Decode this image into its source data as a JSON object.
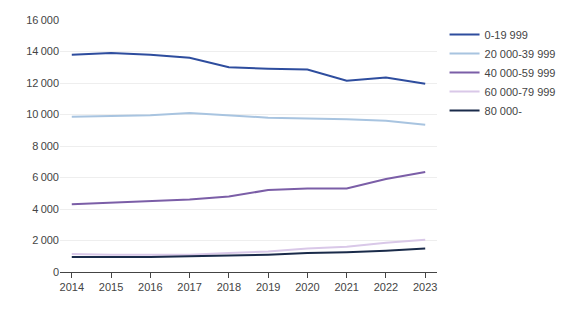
{
  "chart_data": {
    "type": "line",
    "x": [
      2014,
      2015,
      2016,
      2017,
      2018,
      2019,
      2020,
      2021,
      2022,
      2023
    ],
    "series": [
      {
        "name": "0-19 999",
        "color": "#2e4d9e",
        "values": [
          13800,
          13900,
          13800,
          13600,
          13000,
          12900,
          12850,
          12150,
          12350,
          11950
        ]
      },
      {
        "name": "20 000-39 999",
        "color": "#a8c4e0",
        "values": [
          9850,
          9900,
          9950,
          10100,
          9950,
          9800,
          9750,
          9700,
          9600,
          9350
        ]
      },
      {
        "name": "40 000-59 999",
        "color": "#7b5ea7",
        "values": [
          4300,
          4400,
          4500,
          4600,
          4800,
          5200,
          5300,
          5300,
          5900,
          6350
        ]
      },
      {
        "name": "60 000-79 999",
        "color": "#d9c8e8",
        "values": [
          1150,
          1100,
          1100,
          1100,
          1200,
          1300,
          1500,
          1600,
          1850,
          2050
        ]
      },
      {
        "name": "80 000-",
        "color": "#1a2b4a",
        "values": [
          950,
          950,
          950,
          1000,
          1050,
          1100,
          1200,
          1250,
          1350,
          1500
        ]
      }
    ],
    "xlim": [
      2013.7,
      2023.3
    ],
    "xticks": [
      2014,
      2015,
      2016,
      2017,
      2018,
      2019,
      2020,
      2021,
      2022,
      2023
    ],
    "ylim": [
      0,
      16000
    ],
    "yticks": [
      0,
      {
        "value": 2000,
        "label": "2 000"
      },
      {
        "value": 4000,
        "label": "4 000"
      },
      {
        "value": 6000,
        "label": "6 000"
      },
      {
        "value": 8000,
        "label": "8 000"
      },
      {
        "value": 10000,
        "label": "10 000"
      },
      {
        "value": 12000,
        "label": "12 000"
      },
      {
        "value": 14000,
        "label": "14 000"
      },
      {
        "value": 16000,
        "label": "16 000"
      }
    ],
    "grid": "y",
    "legend": "upper right"
  }
}
